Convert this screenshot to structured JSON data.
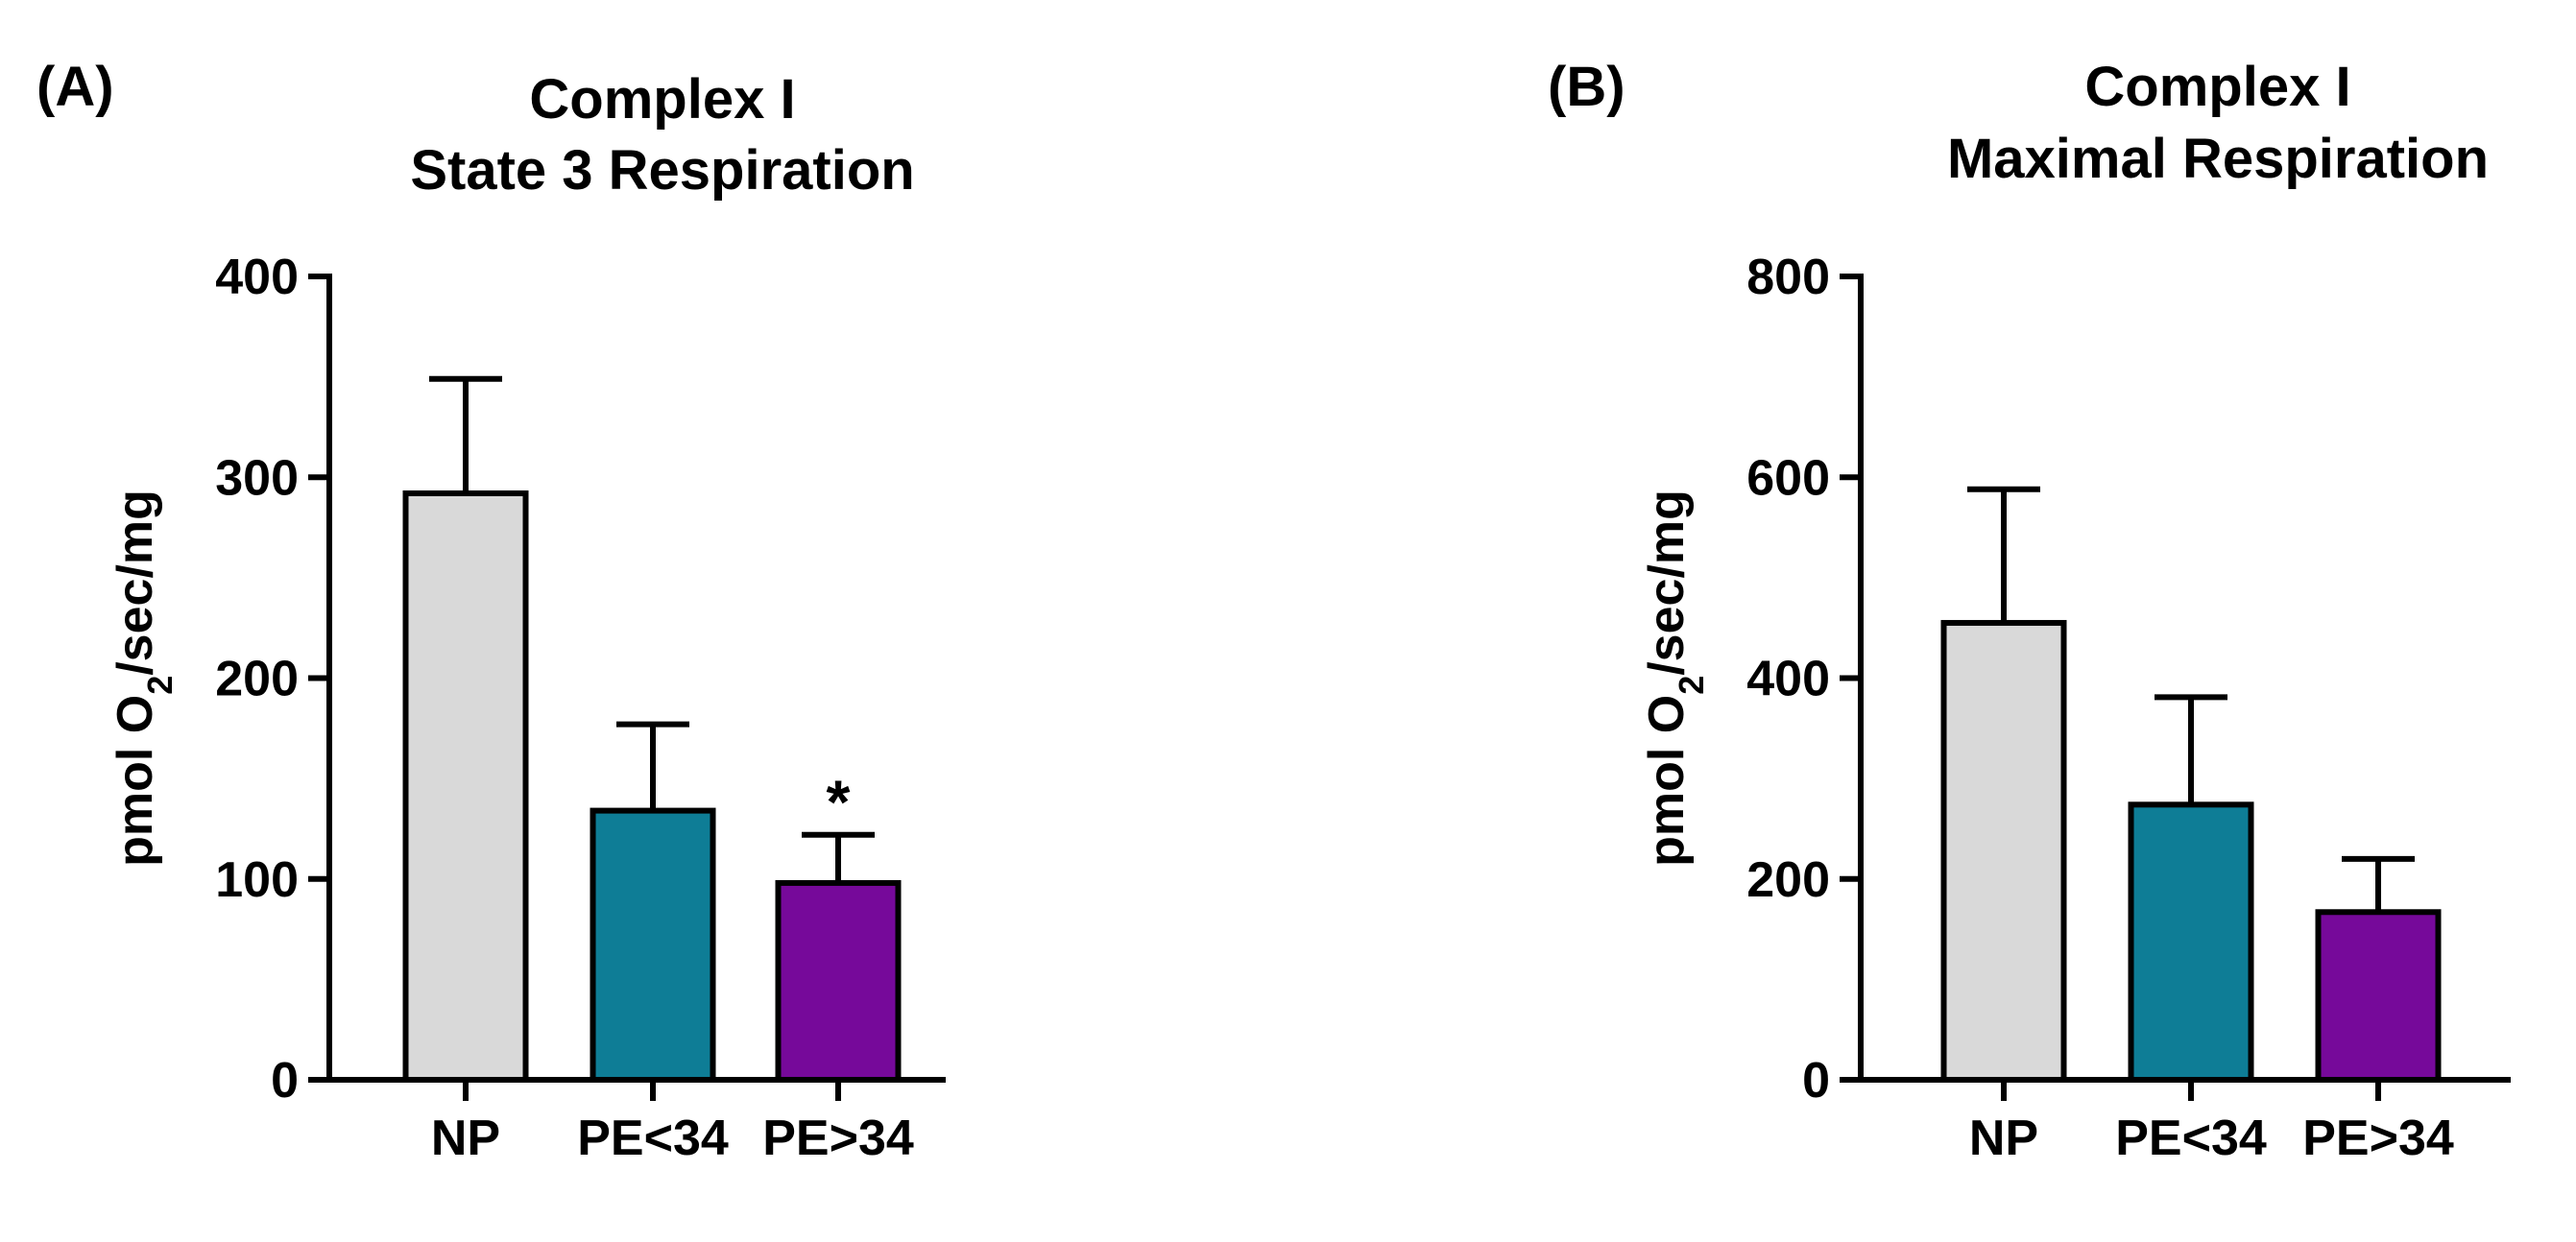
{
  "chart_data": [
    {
      "panel_label": "(A)",
      "type": "bar",
      "title_lines": [
        "Complex I",
        "State 3 Respiration"
      ],
      "ylabel_main": "pmol O",
      "ylabel_sub": "2",
      "ylabel_rest": "/sec/mg",
      "ylim": [
        0,
        400
      ],
      "yticks": [
        0,
        100,
        200,
        300,
        400
      ],
      "categories": [
        "NP",
        "PE<34",
        "PE>34"
      ],
      "values": [
        292,
        134,
        98
      ],
      "errors": [
        57,
        43,
        24
      ],
      "colors": [
        "#d9d9d9",
        "#0e7d96",
        "#76099a"
      ],
      "annotations": [
        "",
        "",
        "*"
      ]
    },
    {
      "panel_label": "(B)",
      "type": "bar",
      "title_lines": [
        "Complex I",
        "Maximal Respiration"
      ],
      "ylabel_main": "pmol O",
      "ylabel_sub": "2",
      "ylabel_rest": "/sec/mg",
      "ylim": [
        0,
        800
      ],
      "yticks": [
        0,
        200,
        400,
        600,
        800
      ],
      "categories": [
        "NP",
        "PE<34",
        "PE>34"
      ],
      "values": [
        455,
        274,
        167
      ],
      "errors": [
        133,
        107,
        53
      ],
      "colors": [
        "#d9d9d9",
        "#0e7d96",
        "#76099a"
      ],
      "annotations": [
        "",
        "",
        ""
      ]
    }
  ]
}
